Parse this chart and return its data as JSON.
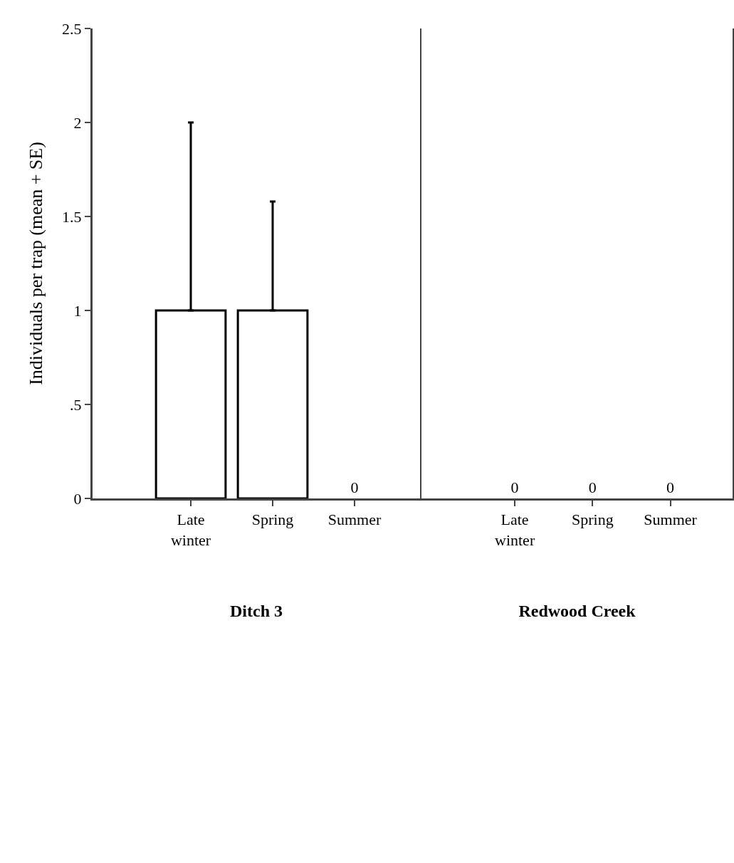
{
  "chart_data": [
    {
      "type": "bar",
      "ylabel": "Individuals per trap (mean + SE)",
      "xlabel": "Ditch 3",
      "categories": [
        "Late winter",
        "Spring",
        "Summer"
      ],
      "values": [
        1,
        1,
        0
      ],
      "errors": [
        [
          1,
          2
        ],
        [
          1,
          1.58
        ],
        null
      ],
      "value_labels": [
        null,
        null,
        "0"
      ],
      "colors": [
        "#ffffff",
        "#ffffff",
        "#ffffff"
      ],
      "ylim": [
        0,
        2.5
      ],
      "yticks": [
        0,
        {
          "value": 0.5,
          "label": ".5"
        },
        1,
        1.5,
        2,
        2.5
      ],
      "grid": false
    },
    {
      "type": "bar",
      "xlabel": "Redwood Creek",
      "categories": [
        "Late winter",
        "Spring",
        "Summer"
      ],
      "values": [
        0,
        0,
        0
      ],
      "value_labels": [
        "0",
        "0",
        "0"
      ],
      "colors": [
        "#ffffff",
        "#ffffff",
        "#ffffff"
      ],
      "ylim": [
        0,
        2.5
      ],
      "tick_labels": "x",
      "grid": false
    }
  ]
}
